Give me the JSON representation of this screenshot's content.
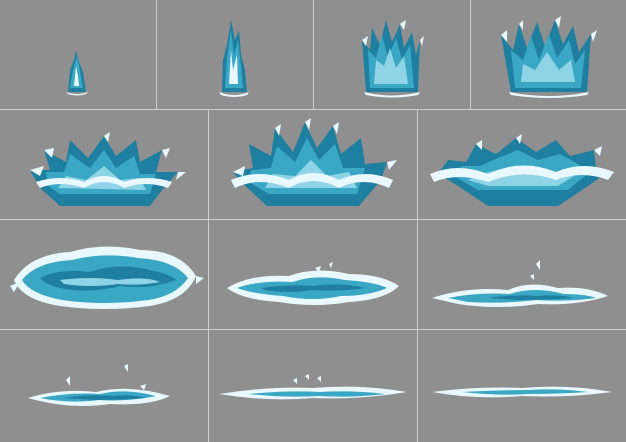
{
  "sprite_sheet": {
    "background_color": "#8f8f8f",
    "grid_line_color": "#cfcfcf",
    "palette": {
      "dark_water": "#1f7fa0",
      "mid_water": "#3aa7c4",
      "light_water": "#8fd3e6",
      "foam": "#e9f8fc"
    },
    "rows": [
      {
        "row": 1,
        "frames": [
          "splash-frame-1",
          "splash-frame-2",
          "splash-frame-3",
          "splash-frame-4"
        ]
      },
      {
        "row": 2,
        "frames": [
          "splash-frame-5",
          "splash-frame-6",
          "splash-frame-7"
        ]
      },
      {
        "row": 3,
        "frames": [
          "splash-frame-8",
          "splash-frame-9",
          "splash-frame-10"
        ]
      },
      {
        "row": 4,
        "frames": [
          "splash-frame-11",
          "splash-frame-12",
          "splash-frame-13"
        ]
      }
    ],
    "frame_count": 13
  }
}
